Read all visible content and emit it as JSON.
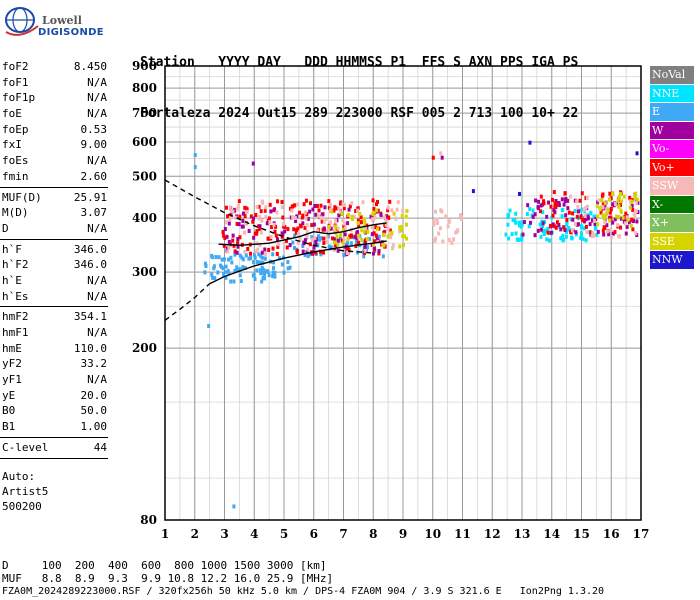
{
  "logo": {
    "line1": "Lowell",
    "line2": "DIGISONDE"
  },
  "header": {
    "row1": "Station   YYYY DAY   DDD HHMMSS P1  FFS S AXN PPS IGA PS",
    "row2": "Fortaleza 2024 Out15 289 223000 RSF 005 2 713 100 10+ 22"
  },
  "params_group1": [
    {
      "key": "foF2",
      "value": "8.450"
    },
    {
      "key": "foF1",
      "value": "N/A"
    },
    {
      "key": "foF1p",
      "value": "N/A"
    },
    {
      "key": "foE",
      "value": "N/A"
    },
    {
      "key": "foEp",
      "value": "0.53"
    },
    {
      "key": "fxI",
      "value": "9.00"
    },
    {
      "key": "foEs",
      "value": "N/A"
    },
    {
      "key": "fmin",
      "value": "2.60"
    }
  ],
  "params_group2": [
    {
      "key": "MUF(D)",
      "value": "25.91"
    },
    {
      "key": "M(D)",
      "value": "3.07"
    },
    {
      "key": "D",
      "value": "N/A"
    }
  ],
  "params_group3": [
    {
      "key": "h`F",
      "value": "346.0"
    },
    {
      "key": "h`F2",
      "value": "346.0"
    },
    {
      "key": "h`E",
      "value": "N/A"
    },
    {
      "key": "h`Es",
      "value": "N/A"
    }
  ],
  "params_group4": [
    {
      "key": "hmF2",
      "value": "354.1"
    },
    {
      "key": "hmF1",
      "value": "N/A"
    },
    {
      "key": "hmE",
      "value": "110.0"
    },
    {
      "key": "yF2",
      "value": "33.2"
    },
    {
      "key": "yF1",
      "value": "N/A"
    },
    {
      "key": "yE",
      "value": "20.0"
    },
    {
      "key": "B0",
      "value": "50.0"
    },
    {
      "key": "B1",
      "value": "1.00"
    }
  ],
  "params_group5": [
    {
      "key": "C-level",
      "value": "44"
    }
  ],
  "autoscale": {
    "line1": "Auto:",
    "line2": "Artist5",
    "line3": "500200"
  },
  "legend": [
    {
      "label": "NoVal",
      "color": "#808080"
    },
    {
      "label": "NNE",
      "color": "#00e5ff"
    },
    {
      "label": "E",
      "color": "#3fa9f5"
    },
    {
      "label": "W",
      "color": "#a0009e"
    },
    {
      "label": "Vo-",
      "color": "#ff00ff"
    },
    {
      "label": "Vo+",
      "color": "#ff0000"
    },
    {
      "label": "SSW",
      "color": "#f7b8b8"
    },
    {
      "label": "X-",
      "color": "#007700"
    },
    {
      "label": "X+",
      "color": "#7fbf5f"
    },
    {
      "label": "SSE",
      "color": "#d4d400"
    },
    {
      "label": "NNW",
      "color": "#1c16cc"
    }
  ],
  "footer": {
    "row1": "D     100  200  400  600  800 1000 1500 3000 [km]",
    "row2": "MUF   8.8  8.9  9.3  9.9 10.8 12.2 16.0 25.9 [MHz]",
    "row3": "FZA0M_2024289223000.RSF / 320fx256h 50 kHz 5.0 km / DPS-4 FZA0M 904 / 3.9 S 321.6 E   Ion2Png 1.3.20"
  },
  "chart_data": {
    "type": "scatter",
    "xlim": [
      1,
      17
    ],
    "ylim": [
      80,
      900
    ],
    "x_ticks": [
      1,
      2,
      3,
      4,
      5,
      6,
      7,
      8,
      9,
      10,
      11,
      12,
      13,
      14,
      15,
      16,
      17
    ],
    "y_ticks": [
      80,
      200,
      300,
      400,
      500,
      600,
      700,
      800,
      900
    ],
    "y_scale": "log",
    "grid": true,
    "xlabel": "",
    "ylabel": "",
    "traces": [
      {
        "name": "",
        "color": "#000000",
        "dash": "dashed",
        "points": [
          [
            1.0,
            490
          ],
          [
            2.0,
            448
          ],
          [
            3.0,
            412
          ],
          [
            4.0,
            384
          ],
          [
            5.0,
            362
          ],
          [
            6.0,
            346
          ],
          [
            7.0,
            336
          ],
          [
            8.0,
            332
          ]
        ]
      },
      {
        "name": "",
        "color": "#000000",
        "dash": "dashed",
        "points": [
          [
            1.0,
            232
          ],
          [
            1.5,
            246
          ],
          [
            2.0,
            262
          ],
          [
            2.5,
            282
          ]
        ]
      },
      {
        "name": "",
        "color": "#000000",
        "dash": "solid",
        "points": [
          [
            2.5,
            282
          ],
          [
            3.0,
            293
          ],
          [
            4.0,
            310
          ],
          [
            5.0,
            323
          ],
          [
            6.0,
            334
          ],
          [
            7.0,
            343
          ],
          [
            8.0,
            350
          ],
          [
            8.45,
            354
          ]
        ]
      },
      {
        "name": "",
        "color": "#000000",
        "dash": "solid",
        "points": [
          [
            2.8,
            348
          ],
          [
            3.5,
            346
          ],
          [
            4.5,
            350
          ],
          [
            5.5,
            362
          ],
          [
            6.0,
            372
          ],
          [
            6.5,
            368
          ],
          [
            7.0,
            372
          ],
          [
            7.5,
            380
          ],
          [
            8.0,
            386
          ],
          [
            8.45,
            390
          ]
        ]
      }
    ],
    "echo_clusters": [
      {
        "color": "#3fa9f5",
        "x": [
          2.3,
          5.2
        ],
        "y": [
          285,
          330
        ],
        "count": 90
      },
      {
        "color": "#3fa9f5",
        "x": [
          5.2,
          8.4
        ],
        "y": [
          325,
          365
        ],
        "count": 60
      },
      {
        "color": "#ff0000",
        "x": [
          2.9,
          8.6
        ],
        "y": [
          330,
          440
        ],
        "count": 170
      },
      {
        "color": "#a0009e",
        "x": [
          3.0,
          8.6
        ],
        "y": [
          330,
          430
        ],
        "count": 90
      },
      {
        "color": "#f7b8b8",
        "x": [
          3.0,
          9.0
        ],
        "y": [
          330,
          440
        ],
        "count": 110
      },
      {
        "color": "#d4d400",
        "x": [
          6.5,
          9.2
        ],
        "y": [
          340,
          420
        ],
        "count": 50
      },
      {
        "color": "#f7b8b8",
        "x": [
          10.0,
          11.0
        ],
        "y": [
          350,
          420
        ],
        "count": 25
      },
      {
        "color": "#00e5ff",
        "x": [
          12.4,
          15.5
        ],
        "y": [
          355,
          420
        ],
        "count": 90
      },
      {
        "color": "#a0009e",
        "x": [
          13.0,
          16.9
        ],
        "y": [
          365,
          450
        ],
        "count": 100
      },
      {
        "color": "#ff0000",
        "x": [
          13.5,
          16.9
        ],
        "y": [
          370,
          460
        ],
        "count": 60
      },
      {
        "color": "#f7b8b8",
        "x": [
          14.5,
          16.9
        ],
        "y": [
          360,
          450
        ],
        "count": 40
      },
      {
        "color": "#d4d400",
        "x": [
          15.5,
          16.9
        ],
        "y": [
          380,
          460
        ],
        "count": 35
      }
    ],
    "isolated_points": [
      {
        "x": 2.0,
        "y": 560,
        "color": "#3fa9f5"
      },
      {
        "x": 2.0,
        "y": 525,
        "color": "#3fa9f5"
      },
      {
        "x": 2.45,
        "y": 225,
        "color": "#3fa9f5"
      },
      {
        "x": 3.3,
        "y": 86,
        "color": "#3fa9f5"
      },
      {
        "x": 3.95,
        "y": 535,
        "color": "#a0009e"
      },
      {
        "x": 10.0,
        "y": 552,
        "color": "#ff0000"
      },
      {
        "x": 10.25,
        "y": 565,
        "color": "#f7b8b8"
      },
      {
        "x": 10.3,
        "y": 552,
        "color": "#a0009e"
      },
      {
        "x": 13.25,
        "y": 598,
        "color": "#1c16cc"
      },
      {
        "x": 16.85,
        "y": 565,
        "color": "#1c16cc"
      },
      {
        "x": 11.35,
        "y": 462,
        "color": "#1c16cc"
      },
      {
        "x": 12.9,
        "y": 455,
        "color": "#1c16cc"
      }
    ]
  }
}
